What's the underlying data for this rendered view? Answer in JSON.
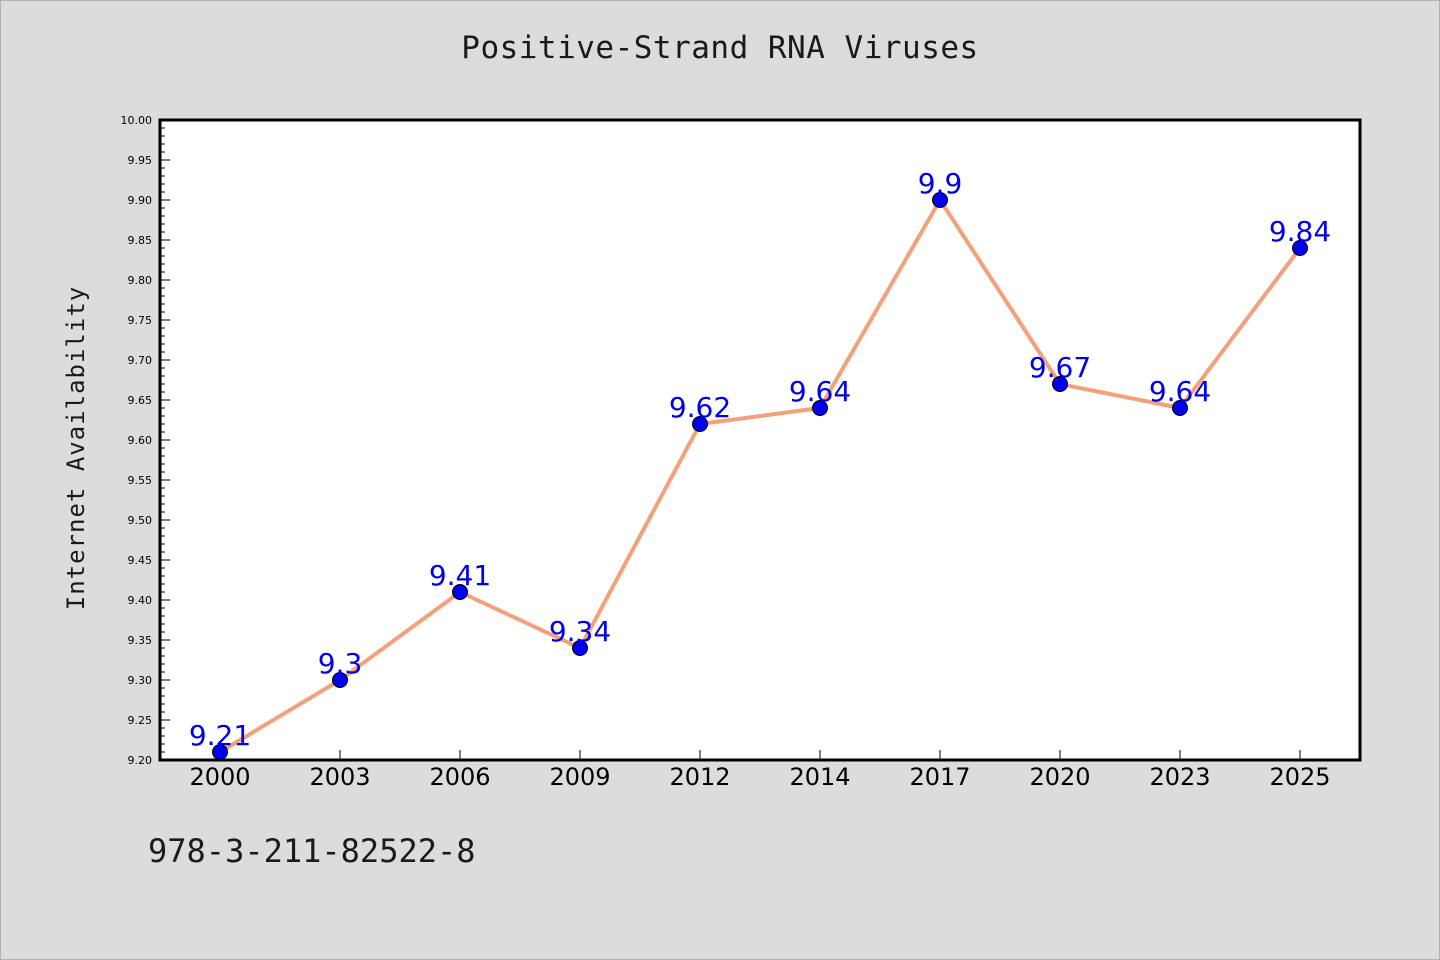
{
  "chart_data": {
    "type": "line",
    "title": "Positive-Strand RNA Viruses",
    "xlabel": "",
    "ylabel": "Internet Availability",
    "categories": [
      "2000",
      "2003",
      "2006",
      "2009",
      "2012",
      "2014",
      "2017",
      "2020",
      "2023",
      "2025"
    ],
    "series": [
      {
        "values": [
          9.21,
          9.3,
          9.41,
          9.34,
          9.62,
          9.64,
          9.9,
          9.67,
          9.64,
          9.84
        ],
        "labels": [
          "9.21",
          "9.3",
          "9.41",
          "9.34",
          "9.62",
          "9.64",
          "9.9",
          "9.67",
          "9.64",
          "9.84"
        ],
        "line_color": "#f4a07a",
        "marker_color": "#0000ee",
        "label_color": "#0000ee"
      }
    ],
    "ylim": [
      9.2,
      10.0
    ],
    "yticks": [
      "9.20",
      "9.25",
      "9.30",
      "9.35",
      "9.40",
      "9.45",
      "9.50",
      "9.55",
      "9.60",
      "9.65",
      "9.70",
      "9.75",
      "9.80",
      "9.85",
      "9.90",
      "9.95",
      "10.00"
    ],
    "grid": false,
    "legend": false
  },
  "footer": {
    "isbn": "978-3-211-82522-8"
  },
  "colors": {
    "background": "#dcdcdc",
    "plot_background": "#ffffff"
  }
}
